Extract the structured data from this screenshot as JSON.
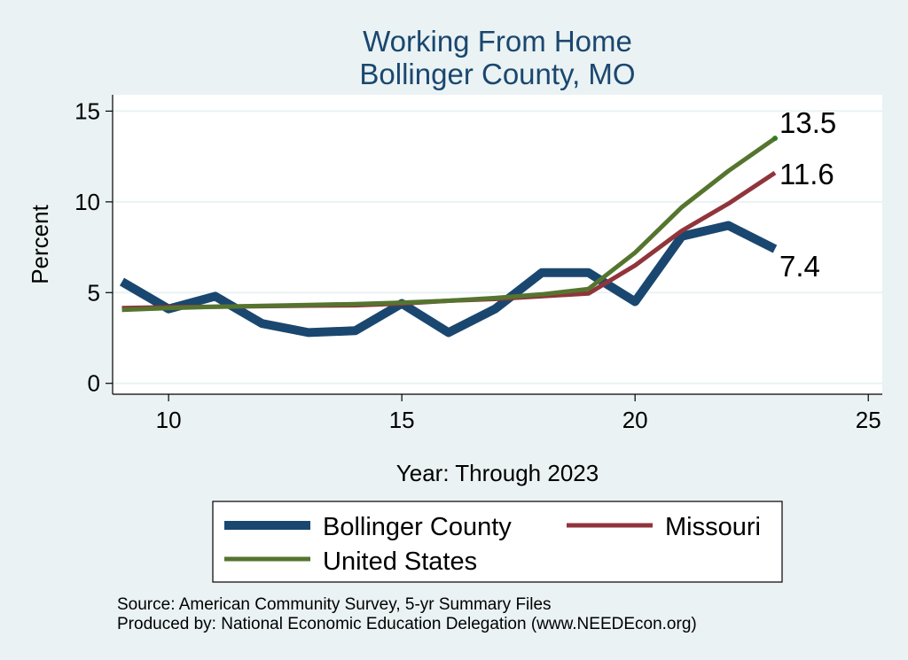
{
  "chart_data": {
    "type": "line",
    "title": "Working From Home",
    "subtitle": "Bollinger County, MO",
    "xlabel": "Year: Through 2023",
    "ylabel": "Percent",
    "xlim": [
      8.8,
      25.3
    ],
    "ylim": [
      -0.6,
      15.9
    ],
    "xticks": [
      10,
      15,
      20,
      25
    ],
    "yticks": [
      0,
      5,
      10,
      15
    ],
    "grid": true,
    "series": [
      {
        "name": "Bollinger County",
        "color": "#1a476f",
        "x": [
          9,
          10,
          11,
          12,
          13,
          14,
          15,
          16,
          17,
          18,
          19,
          20,
          21,
          22,
          23
        ],
        "values": [
          5.6,
          4.1,
          4.8,
          3.3,
          2.8,
          2.9,
          4.4,
          2.8,
          4.1,
          6.1,
          6.1,
          4.5,
          8.1,
          8.7,
          7.4
        ],
        "end_label": "7.4"
      },
      {
        "name": "Missouri",
        "color": "#90353b",
        "x": [
          9,
          10,
          11,
          12,
          13,
          14,
          15,
          16,
          17,
          18,
          19,
          20,
          21,
          22,
          23
        ],
        "values": [
          4.15,
          4.2,
          4.22,
          4.25,
          4.28,
          4.3,
          4.4,
          4.55,
          4.65,
          4.8,
          4.95,
          6.5,
          8.4,
          9.9,
          11.6
        ],
        "end_label": "11.6"
      },
      {
        "name": "United States",
        "color": "#55752f",
        "x": [
          9,
          10,
          11,
          12,
          13,
          14,
          15,
          16,
          17,
          18,
          19,
          20,
          21,
          22,
          23
        ],
        "values": [
          4.05,
          4.15,
          4.22,
          4.27,
          4.32,
          4.37,
          4.45,
          4.55,
          4.7,
          4.9,
          5.2,
          7.2,
          9.7,
          11.7,
          13.5
        ],
        "end_label": "13.5"
      }
    ],
    "legend": {
      "position": "bottom",
      "entries": [
        "Bollinger County",
        "Missouri",
        "United States"
      ]
    }
  },
  "source_lines": [
    "Source: American Community Survey, 5-yr Summary Files",
    "Produced by: National Economic Education Delegation (www.NEEDEcon.org)"
  ],
  "colors": {
    "background": "#eaf2f3",
    "plot_background": "#ffffff",
    "title": "#1a476f",
    "grid": "#eaf2f3"
  }
}
